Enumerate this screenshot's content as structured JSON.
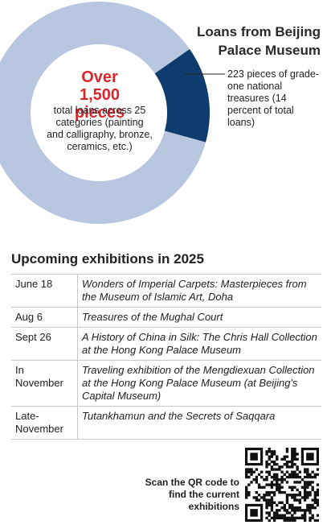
{
  "chart_data": {
    "type": "donut",
    "title": "Loans from Beijing Palace Museum",
    "center_headline": "Over 1,500 pieces",
    "center_text": "total loans across 25 categories (painting and calligraphy, bronze, ceramics, etc.)",
    "annotation": "223 pieces of grade-one national treasures (14 percent of total loans)",
    "values": [
      14,
      86
    ],
    "colors": [
      "#0f3c6e",
      "#b9c6df"
    ]
  },
  "table": {
    "title": "Upcoming exhibitions in 2025",
    "rows": [
      [
        "June 18",
        "Wonders of Imperial Carpets: Masterpieces from the Museum of Islamic Art, Doha"
      ],
      [
        "Aug 6",
        "Treasures of the Mughal Court"
      ],
      [
        "Sept 26",
        "A History of China in Silk: The Chris Hall Collection at the Hong Kong Palace Museum"
      ],
      [
        "In November",
        "Traveling exhibition of the Mengdiexuan Collection at the Hong Kong Palace Museum (at Beijing's Capital Museum)"
      ],
      [
        "Late-November",
        "Tutankhamun and the Secrets of Saqqara"
      ]
    ]
  },
  "qr": {
    "caption": "Scan the QR code to find the current exhibitions"
  }
}
